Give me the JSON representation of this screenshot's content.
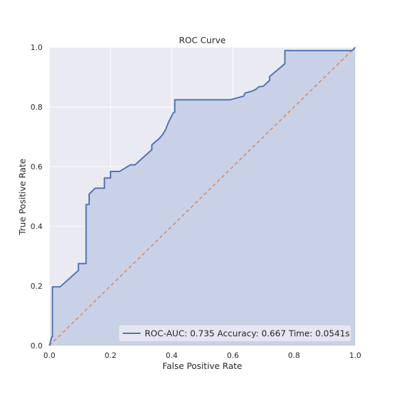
{
  "chart_data": {
    "type": "line",
    "title": "ROC Curve",
    "xlabel": "False Positive Rate",
    "ylabel": "True Positive Rate",
    "xlim": [
      0,
      1
    ],
    "ylim": [
      0,
      1
    ],
    "grid": true,
    "xticks": [
      "0.0",
      "0.2",
      "0.4",
      "0.6",
      "0.8",
      "1.0"
    ],
    "yticks": [
      "0.0",
      "0.2",
      "0.4",
      "0.6",
      "0.8",
      "1.0"
    ],
    "legend_position": "lower-right",
    "legend": "ROC-AUC: 0.735  Accuracy: 0.667  Time: 0.0541s",
    "colors": {
      "roc_line": "#4c72b0",
      "roc_fill": "#c9d1e6",
      "diagonal": "#dd8452",
      "plot_bg": "#eaeaf2",
      "grid": "#ffffff"
    },
    "series": [
      {
        "style": "solid",
        "fill_below": true,
        "x": [
          0.0,
          0.008,
          0.01,
          0.01,
          0.035,
          0.095,
          0.095,
          0.12,
          0.12,
          0.13,
          0.13,
          0.15,
          0.18,
          0.18,
          0.2,
          0.2,
          0.23,
          0.25,
          0.265,
          0.28,
          0.335,
          0.335,
          0.36,
          0.37,
          0.38,
          0.39,
          0.405,
          0.41,
          0.41,
          0.59,
          0.635,
          0.64,
          0.66,
          0.675,
          0.685,
          0.69,
          0.7,
          0.72,
          0.72,
          0.77,
          0.77,
          0.8,
          0.9,
          0.99,
          1.0
        ],
        "y": [
          0.0,
          0.03,
          0.03,
          0.197,
          0.197,
          0.252,
          0.275,
          0.275,
          0.473,
          0.473,
          0.508,
          0.528,
          0.528,
          0.562,
          0.562,
          0.584,
          0.584,
          0.597,
          0.606,
          0.606,
          0.657,
          0.673,
          0.695,
          0.707,
          0.724,
          0.75,
          0.78,
          0.783,
          0.824,
          0.824,
          0.836,
          0.847,
          0.852,
          0.859,
          0.868,
          0.868,
          0.87,
          0.889,
          0.902,
          0.945,
          0.989,
          0.989,
          0.989,
          0.989,
          1.0
        ]
      },
      {
        "style": "dashed",
        "x": [
          0,
          1
        ],
        "y": [
          0,
          1
        ]
      }
    ]
  }
}
